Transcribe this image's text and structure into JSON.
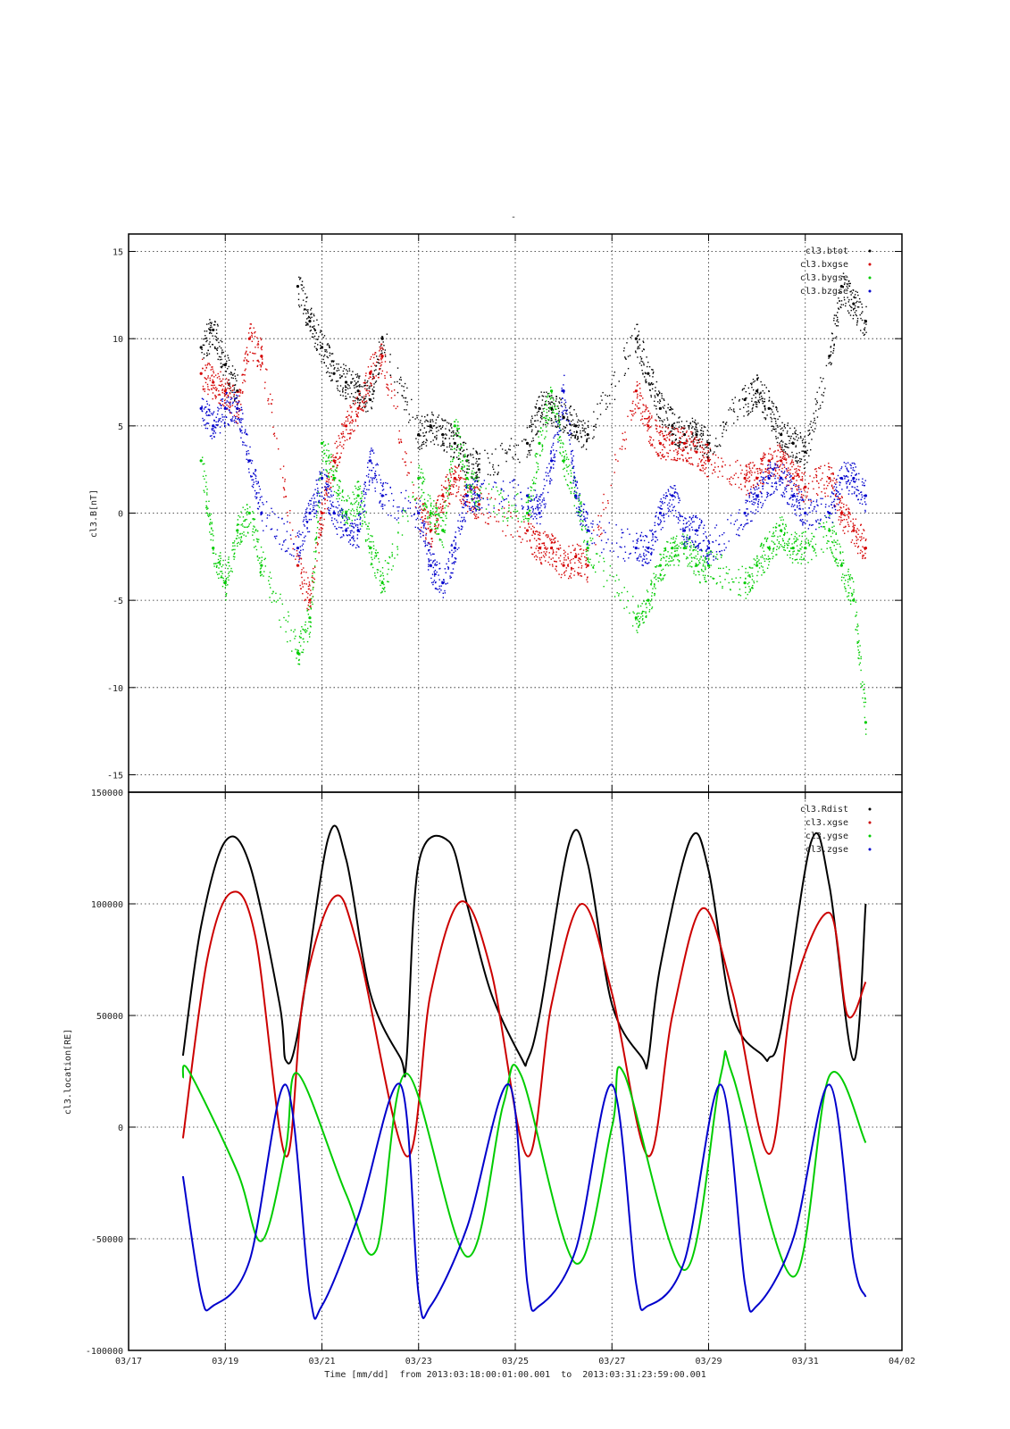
{
  "chart_data": [
    {
      "type": "scatter",
      "title": "-",
      "ylabel": "cl3.B[nT]",
      "ylim": [
        -16,
        16
      ],
      "yticks": [
        -15,
        -10,
        -5,
        0,
        5,
        10,
        15
      ],
      "grid": true,
      "legend_position": "top-right",
      "note": "dense scatter of 1-minute samples; values below are representative trend traces",
      "series": [
        {
          "name": "cl3.btot",
          "color": "#000000",
          "x": [
            "2013-03-18T12:00",
            "2013-03-18T18:00",
            "2013-03-19T00:00",
            "2013-03-19T06:00",
            "2013-03-20T12:00",
            "2013-03-20T18:00",
            "2013-03-21T00:00",
            "2013-03-21T06:00",
            "2013-03-21T12:00",
            "2013-03-21T18:00",
            "2013-03-22T00:00",
            "2013-03-22T06:00",
            "2013-03-23T00:00",
            "2013-03-23T06:00",
            "2013-03-23T12:00",
            "2013-03-23T18:00",
            "2013-03-24T00:00",
            "2013-03-24T06:00",
            "2013-03-25T06:00",
            "2013-03-25T12:00",
            "2013-03-25T18:00",
            "2013-03-26T00:00",
            "2013-03-26T06:00",
            "2013-03-26T12:00",
            "2013-03-27T12:00",
            "2013-03-27T18:00",
            "2013-03-28T00:00",
            "2013-03-28T06:00",
            "2013-03-28T12:00",
            "2013-03-28T18:00",
            "2013-03-29T00:00",
            "2013-03-29T18:00",
            "2013-03-30T00:00",
            "2013-03-30T06:00",
            "2013-03-30T12:00",
            "2013-03-30T18:00",
            "2013-03-31T00:00",
            "2013-03-31T12:00",
            "2013-03-31T18:00",
            "2013-04-01T00:00",
            "2013-04-01T06:00"
          ],
          "y": [
            9.5,
            10.5,
            8.5,
            7,
            13,
            11,
            9.5,
            8,
            7.5,
            7,
            6.5,
            10,
            4.5,
            5,
            4.5,
            4,
            3,
            2.5,
            4,
            6,
            6,
            5.5,
            5,
            4.5,
            10,
            8,
            6,
            5,
            4.5,
            4.5,
            4,
            6.5,
            7,
            6,
            4.5,
            4,
            3.5,
            9,
            13,
            12,
            11
          ]
        },
        {
          "name": "cl3.bxgse",
          "color": "#d40000",
          "x": [
            "2013-03-18T12:00",
            "2013-03-18T18:00",
            "2013-03-19T00:00",
            "2013-03-19T06:00",
            "2013-03-19T12:00",
            "2013-03-19T18:00",
            "2013-03-20T12:00",
            "2013-03-20T18:00",
            "2013-03-21T00:00",
            "2013-03-21T06:00",
            "2013-03-21T12:00",
            "2013-03-21T18:00",
            "2013-03-22T00:00",
            "2013-03-22T06:00",
            "2013-03-23T00:00",
            "2013-03-23T06:00",
            "2013-03-23T12:00",
            "2013-03-23T18:00",
            "2013-03-24T00:00",
            "2013-03-24T06:00",
            "2013-03-25T06:00",
            "2013-03-25T12:00",
            "2013-03-25T18:00",
            "2013-03-26T00:00",
            "2013-03-26T06:00",
            "2013-03-26T12:00",
            "2013-03-27T12:00",
            "2013-03-27T18:00",
            "2013-03-28T00:00",
            "2013-03-28T06:00",
            "2013-03-28T12:00",
            "2013-03-28T18:00",
            "2013-03-29T00:00",
            "2013-03-29T18:00",
            "2013-03-30T00:00",
            "2013-03-30T06:00",
            "2013-03-30T12:00",
            "2013-03-30T18:00",
            "2013-03-31T00:00",
            "2013-03-31T12:00",
            "2013-03-31T18:00",
            "2013-04-01T00:00",
            "2013-04-01T06:00"
          ],
          "y": [
            8,
            7.5,
            7,
            6,
            10,
            9,
            -3,
            -5,
            0,
            3,
            5,
            6,
            8,
            9,
            0,
            -1,
            1,
            2,
            1,
            0.5,
            -1,
            -2,
            -2,
            -3,
            -2.5,
            -3,
            7,
            5,
            4,
            4,
            4,
            3.5,
            3,
            2,
            2,
            3,
            3,
            2,
            1.5,
            2,
            0,
            -1,
            -2
          ]
        },
        {
          "name": "cl3.bygse",
          "color": "#00cc00",
          "x": [
            "2013-03-18T12:00",
            "2013-03-18T18:00",
            "2013-03-19T00:00",
            "2013-03-19T06:00",
            "2013-03-19T12:00",
            "2013-03-19T18:00",
            "2013-03-20T12:00",
            "2013-03-20T18:00",
            "2013-03-21T00:00",
            "2013-03-21T06:00",
            "2013-03-21T12:00",
            "2013-03-21T18:00",
            "2013-03-22T00:00",
            "2013-03-22T06:00",
            "2013-03-23T00:00",
            "2013-03-23T06:00",
            "2013-03-23T12:00",
            "2013-03-23T18:00",
            "2013-03-24T00:00",
            "2013-03-24T06:00",
            "2013-03-25T06:00",
            "2013-03-25T12:00",
            "2013-03-25T18:00",
            "2013-03-26T00:00",
            "2013-03-26T06:00",
            "2013-03-26T12:00",
            "2013-03-27T12:00",
            "2013-03-27T18:00",
            "2013-03-28T00:00",
            "2013-03-28T06:00",
            "2013-03-28T12:00",
            "2013-03-28T18:00",
            "2013-03-29T00:00",
            "2013-03-29T18:00",
            "2013-03-30T00:00",
            "2013-03-30T06:00",
            "2013-03-30T12:00",
            "2013-03-30T18:00",
            "2013-03-31T00:00",
            "2013-03-31T12:00",
            "2013-03-31T18:00",
            "2013-04-01T00:00",
            "2013-04-01T06:00"
          ],
          "y": [
            3,
            -2,
            -4,
            -1,
            0,
            -3,
            -8,
            -6,
            4,
            2,
            0,
            1,
            -2,
            -4,
            2,
            0,
            -1,
            5,
            2,
            1,
            0,
            4,
            7,
            3,
            1,
            -2,
            -6,
            -5,
            -3,
            -2,
            -2,
            -3,
            -3,
            -4,
            -3,
            -2,
            -1,
            -2,
            -2,
            -1,
            -3,
            -5,
            -12
          ]
        },
        {
          "name": "cl3.bzgse",
          "color": "#0000cc",
          "x": [
            "2013-03-18T12:00",
            "2013-03-18T18:00",
            "2013-03-19T00:00",
            "2013-03-19T06:00",
            "2013-03-19T12:00",
            "2013-03-19T18:00",
            "2013-03-20T12:00",
            "2013-03-20T18:00",
            "2013-03-21T00:00",
            "2013-03-21T06:00",
            "2013-03-21T12:00",
            "2013-03-21T18:00",
            "2013-03-22T00:00",
            "2013-03-22T06:00",
            "2013-03-23T00:00",
            "2013-03-23T06:00",
            "2013-03-23T12:00",
            "2013-03-23T18:00",
            "2013-03-24T00:00",
            "2013-03-24T06:00",
            "2013-03-25T06:00",
            "2013-03-25T12:00",
            "2013-03-25T18:00",
            "2013-03-26T00:00",
            "2013-03-26T06:00",
            "2013-03-26T12:00",
            "2013-03-27T12:00",
            "2013-03-27T18:00",
            "2013-03-28T00:00",
            "2013-03-28T06:00",
            "2013-03-28T12:00",
            "2013-03-28T18:00",
            "2013-03-29T00:00",
            "2013-03-29T18:00",
            "2013-03-30T00:00",
            "2013-03-30T06:00",
            "2013-03-30T12:00",
            "2013-03-30T18:00",
            "2013-03-31T00:00",
            "2013-03-31T12:00",
            "2013-03-31T18:00",
            "2013-04-01T00:00",
            "2013-04-01T06:00"
          ],
          "y": [
            6,
            5,
            6,
            6,
            3,
            0,
            -2,
            0,
            2,
            0,
            -1,
            -1,
            3,
            1,
            0,
            -3,
            -4,
            -2,
            1,
            1,
            1,
            0,
            3,
            7,
            1,
            -1,
            -2,
            -2,
            0,
            1,
            -1,
            -1,
            -2,
            0,
            1,
            2,
            2,
            1,
            0,
            0,
            2,
            2,
            1
          ]
        }
      ]
    },
    {
      "type": "line",
      "ylabel": "cl3.location[RE]",
      "xlabel": "Time [mm/dd]  from 2013:03:18:00:01:00.001  to  2013:03:31:23:59:00.001",
      "xlim": [
        "2013-03-17",
        "2013-04-02"
      ],
      "xticks": [
        "03/17",
        "03/19",
        "03/21",
        "03/23",
        "03/25",
        "03/27",
        "03/29",
        "03/31",
        "04/02"
      ],
      "ylim": [
        -100000,
        150000
      ],
      "yticks": [
        -100000,
        -50000,
        0,
        50000,
        100000,
        150000
      ],
      "grid": true,
      "legend_position": "top-right",
      "series": [
        {
          "name": "cl3.Rdist",
          "color": "#000000",
          "x": [
            "2013-03-18T03:00",
            "2013-03-18T12:00",
            "2013-03-19T00:00",
            "2013-03-19T12:00",
            "2013-03-20T03:00",
            "2013-03-20T06:00",
            "2013-03-20T12:00",
            "2013-03-21T03:00",
            "2013-03-21T12:00",
            "2013-03-22T00:00",
            "2013-03-22T15:00",
            "2013-03-22T18:00",
            "2013-03-23T00:00",
            "2013-03-23T15:00",
            "2013-03-24T00:00",
            "2013-03-24T12:00",
            "2013-03-25T03:00",
            "2013-03-25T06:00",
            "2013-03-25T12:00",
            "2013-03-26T03:00",
            "2013-03-26T12:00",
            "2013-03-27T00:00",
            "2013-03-27T15:00",
            "2013-03-27T18:00",
            "2013-03-28T00:00",
            "2013-03-28T15:00",
            "2013-03-29T00:00",
            "2013-03-29T12:00",
            "2013-03-30T03:00",
            "2013-03-30T06:00",
            "2013-03-30T12:00",
            "2013-03-31T03:00",
            "2013-03-31T12:00",
            "2013-04-01T00:00",
            "2013-04-01T06:00"
          ],
          "y": [
            32000,
            90000,
            128000,
            118000,
            55000,
            30000,
            42000,
            129000,
            120000,
            60000,
            31000,
            30000,
            118000,
            128000,
            100000,
            60000,
            31000,
            30000,
            50000,
            128000,
            118000,
            55000,
            31000,
            30000,
            72000,
            129000,
            115000,
            50000,
            32000,
            31000,
            44000,
            128000,
            108000,
            30000,
            100000
          ]
        },
        {
          "name": "cl3.xgse",
          "color": "#cc0000",
          "x": [
            "2013-03-18T03:00",
            "2013-03-18T15:00",
            "2013-03-19T03:00",
            "2013-03-19T15:00",
            "2013-03-20T06:00",
            "2013-03-20T15:00",
            "2013-03-21T06:00",
            "2013-03-21T18:00",
            "2013-03-22T18:00",
            "2013-03-23T06:00",
            "2013-03-23T21:00",
            "2013-03-24T12:00",
            "2013-03-25T06:00",
            "2013-03-25T18:00",
            "2013-03-26T09:00",
            "2013-03-27T00:00",
            "2013-03-27T18:00",
            "2013-03-28T06:00",
            "2013-03-28T21:00",
            "2013-03-29T12:00",
            "2013-03-30T06:00",
            "2013-03-30T18:00",
            "2013-03-31T12:00",
            "2013-03-31T21:00",
            "2013-04-01T06:00"
          ],
          "y": [
            -5000,
            75000,
            105000,
            85000,
            -13000,
            60000,
            103000,
            80000,
            -13000,
            60000,
            101000,
            70000,
            -13000,
            55000,
            100000,
            60000,
            -13000,
            50000,
            98000,
            60000,
            -12000,
            60000,
            96000,
            50000,
            65000
          ]
        },
        {
          "name": "cl3.ygse",
          "color": "#00cc00",
          "x": [
            "2013-03-18T03:00",
            "2013-03-18T06:00",
            "2013-03-19T06:00",
            "2013-03-19T18:00",
            "2013-03-20T06:00",
            "2013-03-20T12:00",
            "2013-03-21T12:00",
            "2013-03-22T03:00",
            "2013-03-22T18:00",
            "2013-03-24T00:00",
            "2013-03-24T18:00",
            "2013-03-25T03:00",
            "2013-03-26T06:00",
            "2013-03-27T00:00",
            "2013-03-27T06:00",
            "2013-03-28T12:00",
            "2013-03-29T06:00",
            "2013-03-29T12:00",
            "2013-03-30T18:00",
            "2013-03-31T12:00",
            "2013-04-01T06:00"
          ],
          "y": [
            22000,
            25000,
            -20000,
            -51000,
            -10000,
            24000,
            -30000,
            -55000,
            24000,
            -58000,
            10000,
            23000,
            -61000,
            0,
            24000,
            -64000,
            23000,
            23000,
            -67000,
            23000,
            -7000
          ]
        },
        {
          "name": "cl3.zgse",
          "color": "#0000cc",
          "x": [
            "2013-03-18T03:00",
            "2013-03-18T12:00",
            "2013-03-18T18:00",
            "2013-03-19T12:00",
            "2013-03-20T06:00",
            "2013-03-20T18:00",
            "2013-03-21T00:00",
            "2013-03-21T18:00",
            "2013-03-22T15:00",
            "2013-03-23T00:00",
            "2013-03-23T06:00",
            "2013-03-24T00:00",
            "2013-03-24T21:00",
            "2013-03-25T06:00",
            "2013-03-25T12:00",
            "2013-03-26T06:00",
            "2013-03-27T00:00",
            "2013-03-27T12:00",
            "2013-03-27T18:00",
            "2013-03-28T12:00",
            "2013-03-29T06:00",
            "2013-03-29T18:00",
            "2013-03-30T00:00",
            "2013-03-30T18:00",
            "2013-03-31T12:00",
            "2013-04-01T00:00",
            "2013-04-01T06:00"
          ],
          "y": [
            -22000,
            -75000,
            -80000,
            -60000,
            19000,
            -75000,
            -80000,
            -40000,
            19000,
            -75000,
            -80000,
            -45000,
            19000,
            -70000,
            -80000,
            -55000,
            19000,
            -70000,
            -80000,
            -60000,
            19000,
            -70000,
            -80000,
            -50000,
            19000,
            -60000,
            -76000
          ]
        }
      ]
    }
  ]
}
